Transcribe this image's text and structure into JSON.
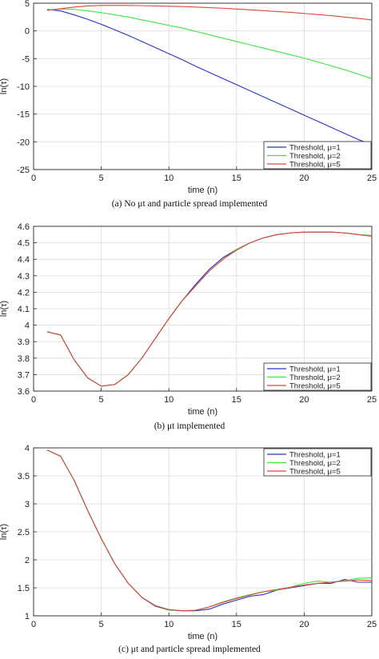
{
  "colors": {
    "mu1": "#2633c4",
    "mu2": "#3ce83c",
    "mu5": "#e0453a",
    "grid": "#dcdcdc",
    "axis": "#262626"
  },
  "chart_data": [
    {
      "type": "line",
      "caption": "(a) No μt and particle spread implemented",
      "xlabel": "time (n)",
      "ylabel": "ln(τ)",
      "xlim": [
        0,
        25
      ],
      "ylim": [
        -25,
        5
      ],
      "xticks": [
        0,
        5,
        10,
        15,
        20,
        25
      ],
      "yticks": [
        5,
        0,
        -5,
        -10,
        -15,
        -20,
        -25
      ],
      "grid": true,
      "legend_position": "bottom-right",
      "series": [
        {
          "name": "Threshold, μ=1",
          "color_key": "mu1",
          "x": [
            1,
            2,
            3,
            4,
            5,
            6,
            7,
            8,
            9,
            10,
            11,
            12,
            13,
            14,
            15,
            16,
            17,
            18,
            19,
            20,
            21,
            22,
            23,
            24,
            25
          ],
          "y": [
            3.9,
            3.6,
            2.9,
            2.1,
            1.2,
            0.2,
            -0.8,
            -1.9,
            -3.0,
            -4.1,
            -5.2,
            -6.4,
            -7.5,
            -8.6,
            -9.7,
            -10.8,
            -11.9,
            -13.0,
            -14.1,
            -15.2,
            -16.3,
            -17.4,
            -18.5,
            -19.6,
            -20.5
          ]
        },
        {
          "name": "Threshold, μ=2",
          "color_key": "mu2",
          "x": [
            1,
            2,
            3,
            4,
            5,
            6,
            7,
            8,
            9,
            10,
            11,
            12,
            13,
            14,
            15,
            16,
            17,
            18,
            19,
            20,
            21,
            22,
            23,
            24,
            25
          ],
          "y": [
            3.8,
            3.9,
            3.9,
            3.6,
            3.3,
            2.9,
            2.5,
            2.0,
            1.5,
            1.0,
            0.5,
            -0.1,
            -0.7,
            -1.3,
            -1.9,
            -2.5,
            -3.1,
            -3.7,
            -4.3,
            -4.9,
            -5.6,
            -6.3,
            -7.0,
            -7.8,
            -8.6
          ]
        },
        {
          "name": "Threshold, μ=5",
          "color_key": "mu5",
          "x": [
            1,
            2,
            3,
            4,
            5,
            6,
            7,
            8,
            9,
            10,
            11,
            12,
            13,
            14,
            15,
            16,
            17,
            18,
            19,
            20,
            21,
            22,
            23,
            24,
            25
          ],
          "y": [
            3.7,
            4.0,
            4.3,
            4.5,
            4.6,
            4.6,
            4.6,
            4.55,
            4.5,
            4.45,
            4.4,
            4.3,
            4.2,
            4.1,
            3.95,
            3.8,
            3.65,
            3.5,
            3.35,
            3.15,
            2.95,
            2.75,
            2.5,
            2.25,
            2.0
          ]
        }
      ]
    },
    {
      "type": "line",
      "caption": "(b) μt implemented",
      "xlabel": "time (n)",
      "ylabel": "ln(τ)",
      "xlim": [
        0,
        25
      ],
      "ylim": [
        3.6,
        4.6
      ],
      "xticks": [
        0,
        5,
        10,
        15,
        20,
        25
      ],
      "yticks": [
        4.6,
        4.5,
        4.4,
        4.3,
        4.2,
        4.1,
        4,
        3.9,
        3.8,
        3.7,
        3.6
      ],
      "grid": true,
      "legend_position": "bottom-right",
      "series": [
        {
          "name": "Threshold, μ=1",
          "color_key": "mu1",
          "x": [
            1,
            2,
            3,
            4,
            5,
            6,
            7,
            8,
            9,
            10,
            11,
            12,
            13,
            14,
            15,
            16,
            17,
            18,
            19,
            20,
            21,
            22,
            23,
            24,
            25
          ],
          "y": [
            3.96,
            3.94,
            3.79,
            3.68,
            3.63,
            3.64,
            3.7,
            3.8,
            3.92,
            4.04,
            4.15,
            4.25,
            4.34,
            4.41,
            4.46,
            4.5,
            4.53,
            4.55,
            4.56,
            4.565,
            4.565,
            4.565,
            4.56,
            4.55,
            4.54
          ]
        },
        {
          "name": "Threshold, μ=2",
          "color_key": "mu2",
          "x": [
            1,
            2,
            3,
            4,
            5,
            6,
            7,
            8,
            9,
            10,
            11,
            12,
            13,
            14,
            15,
            16,
            17,
            18,
            19,
            20,
            21,
            22,
            23,
            24,
            25
          ],
          "y": [
            3.96,
            3.94,
            3.79,
            3.68,
            3.63,
            3.64,
            3.7,
            3.8,
            3.92,
            4.04,
            4.15,
            4.24,
            4.33,
            4.4,
            4.46,
            4.5,
            4.53,
            4.55,
            4.56,
            4.565,
            4.565,
            4.565,
            4.56,
            4.55,
            4.545
          ]
        },
        {
          "name": "Threshold, μ=5",
          "color_key": "mu5",
          "x": [
            1,
            2,
            3,
            4,
            5,
            6,
            7,
            8,
            9,
            10,
            11,
            12,
            13,
            14,
            15,
            16,
            17,
            18,
            19,
            20,
            21,
            22,
            23,
            24,
            25
          ],
          "y": [
            3.96,
            3.94,
            3.79,
            3.68,
            3.63,
            3.64,
            3.7,
            3.8,
            3.92,
            4.04,
            4.15,
            4.24,
            4.33,
            4.4,
            4.455,
            4.5,
            4.53,
            4.55,
            4.56,
            4.565,
            4.565,
            4.565,
            4.56,
            4.55,
            4.54
          ]
        }
      ]
    },
    {
      "type": "line",
      "caption": "(c) μt and particle spread implemented",
      "xlabel": "time (n)",
      "ylabel": "ln(τ)",
      "xlim": [
        0,
        25
      ],
      "ylim": [
        1,
        4
      ],
      "xticks": [
        0,
        5,
        10,
        15,
        20,
        25
      ],
      "yticks": [
        4,
        3.5,
        3,
        2.5,
        2,
        1.5,
        1
      ],
      "grid": true,
      "legend_position": "top-right",
      "series": [
        {
          "name": "Threshold, μ=1",
          "color_key": "mu1",
          "x": [
            1,
            2,
            3,
            4,
            5,
            6,
            7,
            8,
            9,
            10,
            11,
            12,
            13,
            14,
            15,
            16,
            17,
            18,
            19,
            20,
            21,
            22,
            23,
            24,
            25
          ],
          "y": [
            3.96,
            3.85,
            3.42,
            2.88,
            2.38,
            1.93,
            1.58,
            1.33,
            1.18,
            1.11,
            1.09,
            1.09,
            1.12,
            1.21,
            1.28,
            1.35,
            1.38,
            1.46,
            1.5,
            1.54,
            1.58,
            1.58,
            1.65,
            1.6,
            1.6
          ]
        },
        {
          "name": "Threshold, μ=2",
          "color_key": "mu2",
          "x": [
            1,
            2,
            3,
            4,
            5,
            6,
            7,
            8,
            9,
            10,
            11,
            12,
            13,
            14,
            15,
            16,
            17,
            18,
            19,
            20,
            21,
            22,
            23,
            24,
            25
          ],
          "y": [
            3.96,
            3.85,
            3.42,
            2.88,
            2.38,
            1.93,
            1.58,
            1.33,
            1.17,
            1.1,
            1.09,
            1.1,
            1.16,
            1.25,
            1.32,
            1.38,
            1.43,
            1.46,
            1.51,
            1.58,
            1.62,
            1.6,
            1.63,
            1.67,
            1.68
          ]
        },
        {
          "name": "Threshold, μ=5",
          "color_key": "mu5",
          "x": [
            1,
            2,
            3,
            4,
            5,
            6,
            7,
            8,
            9,
            10,
            11,
            12,
            13,
            14,
            15,
            16,
            17,
            18,
            19,
            20,
            21,
            22,
            23,
            24,
            25
          ],
          "y": [
            3.96,
            3.85,
            3.42,
            2.88,
            2.38,
            1.93,
            1.58,
            1.33,
            1.17,
            1.11,
            1.09,
            1.1,
            1.16,
            1.24,
            1.31,
            1.37,
            1.43,
            1.47,
            1.51,
            1.55,
            1.58,
            1.6,
            1.62,
            1.64,
            1.63
          ]
        }
      ]
    }
  ]
}
